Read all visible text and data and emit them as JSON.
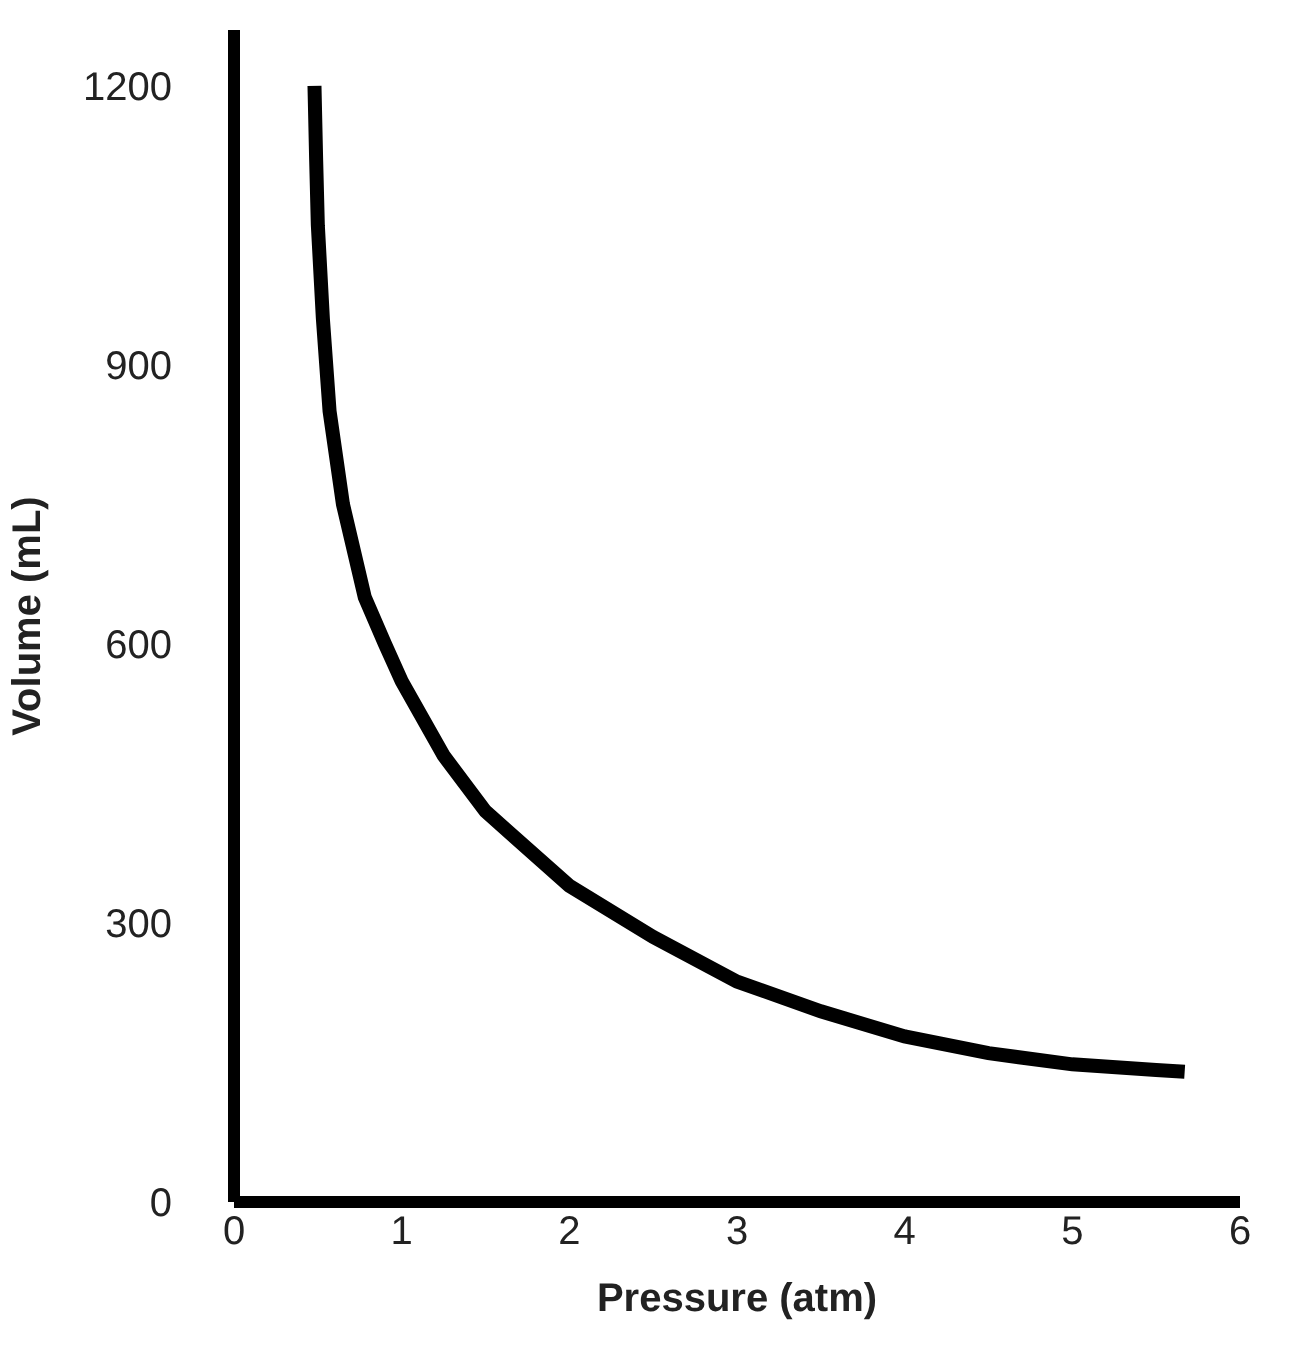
{
  "chart_data": {
    "type": "line",
    "xlabel": "Pressure (atm)",
    "ylabel": "Volume (mL)",
    "xlim": [
      0,
      6
    ],
    "ylim": [
      0,
      1260
    ],
    "xticks": [
      0,
      1,
      2,
      3,
      4,
      5,
      6
    ],
    "yticks": [
      0,
      300,
      600,
      900,
      1200
    ],
    "legend": false,
    "marker": "none",
    "line_style": "solid",
    "series": [
      {
        "color": "#000000",
        "x": [
          0.48,
          0.49,
          0.5,
          0.53,
          0.57,
          0.65,
          0.78,
          0.9,
          1,
          1.25,
          1.5,
          2,
          2.5,
          3,
          3.5,
          4,
          4.5,
          5,
          5.5,
          5.67
        ],
        "values": [
          1200,
          1120,
          1050,
          950,
          850,
          750,
          650,
          600,
          560,
          480,
          420,
          340,
          285,
          237,
          205,
          178,
          160,
          148,
          142,
          140
        ]
      }
    ]
  }
}
